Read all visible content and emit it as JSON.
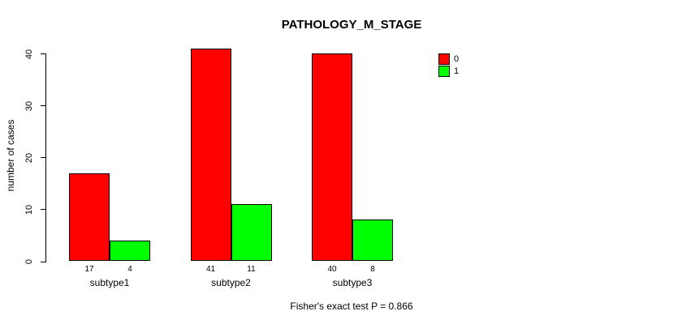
{
  "title": "PATHOLOGY_M_STAGE",
  "footer": "Fisher's exact test P = 0.866",
  "chart_data": {
    "type": "bar",
    "title": "PATHOLOGY_M_STAGE",
    "xlabel": "",
    "ylabel": "number of cases",
    "categories": [
      "subtype1",
      "subtype2",
      "subtype3"
    ],
    "series": [
      {
        "name": "0",
        "color": "#ff0000",
        "values": [
          17,
          41,
          40
        ]
      },
      {
        "name": "1",
        "color": "#00ff00",
        "values": [
          4,
          11,
          8
        ]
      }
    ],
    "bar_value_labels": [
      [
        "17",
        "4"
      ],
      [
        "41",
        "11"
      ],
      [
        "40",
        "8"
      ]
    ],
    "yticks": [
      0,
      10,
      20,
      30,
      40
    ],
    "ylim": [
      0,
      41
    ],
    "grid": false,
    "legend_position": "top-right",
    "legend": [
      {
        "label": "0",
        "color": "#ff0000"
      },
      {
        "label": "1",
        "color": "#00ff00"
      }
    ],
    "annotation": "Fisher's exact test P = 0.866"
  }
}
